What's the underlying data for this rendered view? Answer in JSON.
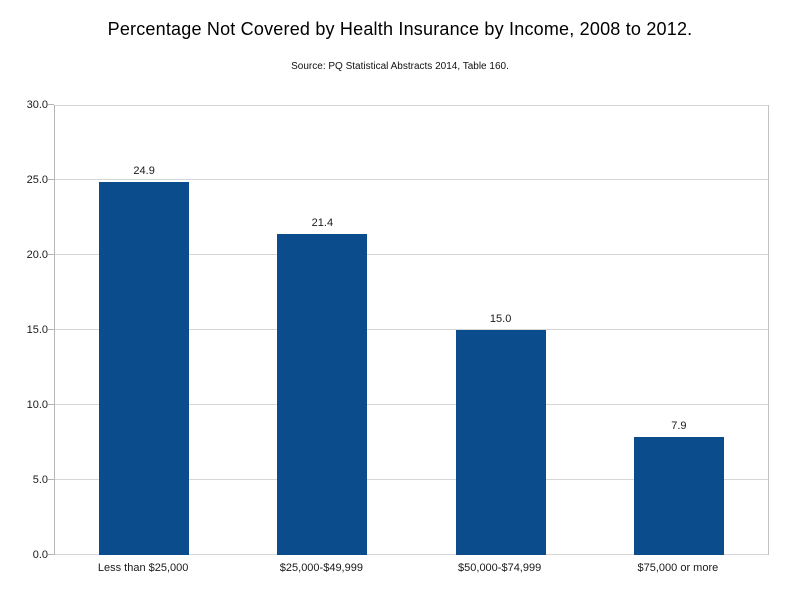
{
  "chart_data": {
    "type": "bar",
    "title": "Percentage Not Covered by Health Insurance by Income, 2008 to 2012.",
    "source": "Source: PQ Statistical Abstracts 2014, Table 160.",
    "categories": [
      "Less than $25,000",
      "$25,000-$49,999",
      "$50,000-$74,999",
      "$75,000 or more"
    ],
    "values": [
      24.9,
      21.4,
      15.0,
      7.9
    ],
    "data_labels": [
      "24.9",
      "21.4",
      "15.0",
      "7.9"
    ],
    "ylim": [
      0,
      30
    ],
    "ytick_step": 5,
    "ytick_labels": [
      "0.0",
      "5.0",
      "10.0",
      "15.0",
      "20.0",
      "25.0",
      "30.0"
    ],
    "xlabel": "",
    "ylabel": "",
    "grid": "horizontal",
    "legend": "none",
    "colors": {
      "bar": "#0b4d8c",
      "gridline": "#d6d6d6",
      "axis": "#b5b5b5",
      "text": "#1a1a1a",
      "background": "#ffffff"
    }
  }
}
